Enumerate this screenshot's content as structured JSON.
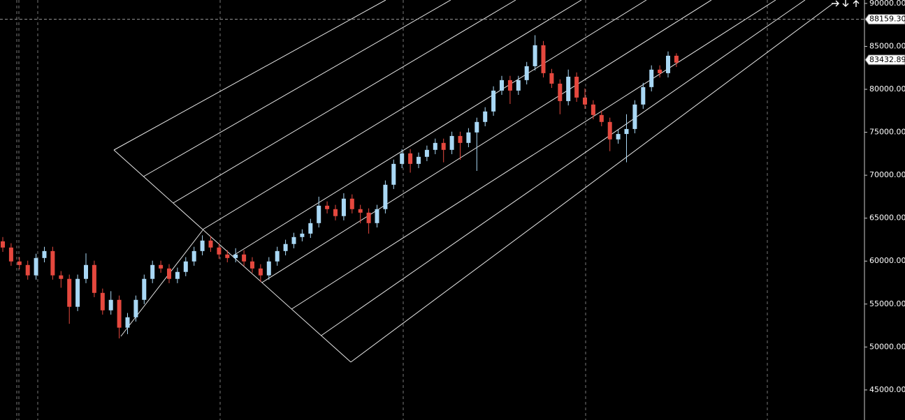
{
  "chart_data": {
    "type": "candlestick",
    "up_color": "#a9d8f5",
    "down_color": "#e5483e",
    "grid": true,
    "ylim": [
      41500,
      90400
    ],
    "yticks": [
      {
        "value": 45000,
        "label": "45000.00"
      },
      {
        "value": 50000,
        "label": "50000.00"
      },
      {
        "value": 55000,
        "label": "55000.00"
      },
      {
        "value": 60000,
        "label": "60000.00"
      },
      {
        "value": 65000,
        "label": "65000.00"
      },
      {
        "value": 70000,
        "label": "70000.00"
      },
      {
        "value": 75000,
        "label": "75000.00"
      },
      {
        "value": 80000,
        "label": "80000.00"
      },
      {
        "value": 85000,
        "label": "85000.00"
      },
      {
        "value": 90000,
        "label": "90000.00"
      }
    ],
    "price_markers": [
      {
        "value": 88159.3,
        "label": "88159.30"
      },
      83432.89
    ],
    "open": [
      62300,
      61580,
      59960,
      59550,
      58340,
      60360,
      61170,
      58340,
      57930,
      54680,
      57930,
      59550,
      56300,
      54270,
      55490,
      52250,
      53460,
      55490,
      57930,
      59550,
      59140,
      57930,
      58740,
      59960,
      61170,
      62390,
      61580,
      60770,
      60360,
      60770,
      59960,
      59140,
      58340,
      59960,
      61170,
      61990,
      62800,
      63200,
      64420,
      66450,
      66050,
      65240,
      67270,
      66050,
      65640,
      64420,
      66050,
      68890,
      71320,
      72540,
      71320,
      72140,
      72950,
      73760,
      72950,
      74570,
      73760,
      74980,
      76200,
      77420,
      79850,
      81070,
      79850,
      81070,
      82690,
      85130,
      81880,
      80660,
      78630,
      81470,
      79040,
      78230,
      77010,
      76200,
      74170,
      74800,
      75380,
      78230,
      80260,
      82290,
      81880,
      83910
    ],
    "high": [
      62800,
      62080,
      60460,
      60050,
      60860,
      61670,
      61670,
      58840,
      58430,
      58430,
      60900,
      60050,
      56800,
      56500,
      55990,
      53960,
      55990,
      58430,
      60050,
      60050,
      59640,
      59240,
      60460,
      61670,
      63000,
      62890,
      62080,
      61270,
      61500,
      61270,
      60460,
      59640,
      60460,
      61670,
      62490,
      63300,
      63700,
      64920,
      67500,
      66950,
      66550,
      67900,
      67770,
      66550,
      66140,
      66550,
      69390,
      71820,
      73040,
      73040,
      72640,
      73450,
      74260,
      74260,
      75070,
      75070,
      75480,
      76700,
      77920,
      80350,
      81570,
      81570,
      81570,
      83190,
      86300,
      85630,
      82380,
      81160,
      82300,
      81970,
      80100,
      78730,
      77510,
      76700,
      75300,
      77100,
      78730,
      80760,
      82790,
      82790,
      84410,
      84200
    ],
    "low": [
      61080,
      59460,
      59050,
      57840,
      57840,
      59860,
      57840,
      56900,
      52700,
      54180,
      57430,
      55800,
      53770,
      53770,
      51000,
      51500,
      52960,
      54990,
      57430,
      58640,
      57430,
      57430,
      58240,
      59460,
      60670,
      61080,
      60270,
      59860,
      59860,
      59460,
      58640,
      57600,
      57840,
      59460,
      60670,
      61490,
      62300,
      62700,
      63920,
      65550,
      64740,
      64740,
      65550,
      64400,
      63200,
      63920,
      65550,
      68390,
      70820,
      70300,
      70820,
      71640,
      72450,
      71500,
      72450,
      71800,
      73260,
      70500,
      75700,
      76920,
      79350,
      78300,
      79350,
      80570,
      82190,
      81380,
      80160,
      77100,
      78130,
      78540,
      77730,
      76510,
      75700,
      72800,
      73670,
      71500,
      74880,
      77730,
      79760,
      81380,
      81380,
      82600
    ],
    "close": [
      61580,
      59960,
      59550,
      58340,
      60360,
      61170,
      58340,
      57930,
      54680,
      57930,
      59550,
      56300,
      54270,
      55490,
      52250,
      53460,
      55490,
      57930,
      59550,
      59140,
      57930,
      58740,
      59960,
      61170,
      62390,
      61580,
      60770,
      60360,
      60770,
      59960,
      59140,
      58340,
      59960,
      61170,
      61990,
      62800,
      63200,
      64420,
      66450,
      66050,
      65240,
      67270,
      66050,
      65640,
      64420,
      66050,
      68890,
      71320,
      72540,
      71320,
      72140,
      72950,
      73760,
      72950,
      74570,
      73760,
      74980,
      76200,
      77420,
      79850,
      81070,
      79850,
      81070,
      82690,
      85130,
      81880,
      80660,
      78630,
      81470,
      79040,
      78230,
      77010,
      76200,
      74170,
      74800,
      75380,
      78230,
      80260,
      82290,
      81880,
      83910,
      83100
    ]
  }
}
